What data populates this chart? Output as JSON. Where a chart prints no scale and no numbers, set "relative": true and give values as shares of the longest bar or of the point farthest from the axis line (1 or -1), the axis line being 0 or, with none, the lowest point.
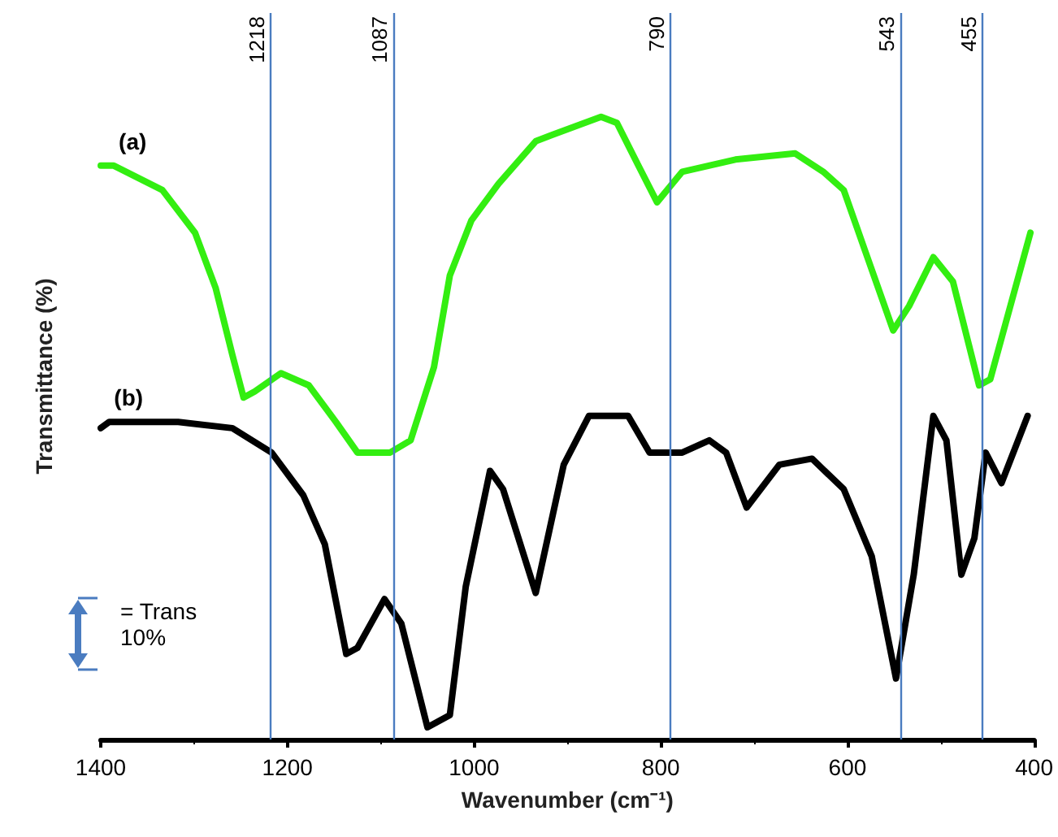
{
  "chart_data": {
    "type": "line",
    "relative": true,
    "xlabel": "Wavenumber (cm⁻¹)",
    "ylabel": "Transmittance (%)",
    "xlim": [
      1400,
      400
    ],
    "xticks": [
      1400,
      1200,
      1000,
      800,
      600,
      400
    ],
    "grid": false,
    "legend": false,
    "marker": "none",
    "line_style": "solid",
    "series": [
      {
        "name": "(a)",
        "color": "#33ee11",
        "x": [
          1400,
          1386,
          1334,
          1299,
          1277,
          1259,
          1247,
          1235,
          1207,
          1177,
          1148,
          1125,
          1090,
          1068,
          1043,
          1026,
          1003,
          974,
          934,
          917,
          864,
          847,
          824,
          804,
          777,
          720,
          656,
          626,
          604,
          581,
          551,
          534,
          508,
          487,
          459,
          447,
          404
        ],
        "values": [
          0.92,
          0.92,
          0.88,
          0.81,
          0.72,
          0.61,
          0.54,
          0.55,
          0.58,
          0.56,
          0.5,
          0.45,
          0.45,
          0.47,
          0.59,
          0.74,
          0.83,
          0.89,
          0.96,
          0.97,
          1.0,
          0.99,
          0.92,
          0.86,
          0.91,
          0.93,
          0.94,
          0.91,
          0.88,
          0.78,
          0.65,
          0.69,
          0.77,
          0.73,
          0.56,
          0.57,
          0.81
        ]
      },
      {
        "name": "(b)",
        "color": "#000000",
        "x": [
          1400,
          1391,
          1317,
          1259,
          1217,
          1183,
          1160,
          1137,
          1125,
          1096,
          1078,
          1050,
          1026,
          1009,
          983,
          969,
          934,
          904,
          877,
          835,
          812,
          777,
          748,
          730,
          708,
          673,
          638,
          604,
          574,
          548,
          529,
          508,
          494,
          478,
          464,
          452,
          435,
          407
        ],
        "values": [
          0.49,
          0.5,
          0.5,
          0.49,
          0.45,
          0.38,
          0.3,
          0.12,
          0.13,
          0.21,
          0.17,
          0.0,
          0.02,
          0.23,
          0.42,
          0.39,
          0.22,
          0.43,
          0.51,
          0.51,
          0.45,
          0.45,
          0.47,
          0.45,
          0.36,
          0.43,
          0.44,
          0.39,
          0.28,
          0.08,
          0.25,
          0.51,
          0.47,
          0.25,
          0.31,
          0.45,
          0.4,
          0.51
        ]
      }
    ],
    "ref_lines": [
      {
        "axis": "x",
        "value": 1218,
        "label": "1218",
        "color": "#4a7cc0"
      },
      {
        "axis": "x",
        "value": 1087,
        "label": "1087",
        "color": "#4a7cc0"
      },
      {
        "axis": "x",
        "value": 790,
        "label": "790",
        "color": "#4a7cc0"
      },
      {
        "axis": "x",
        "value": 543,
        "label": "543",
        "color": "#4a7cc0"
      },
      {
        "axis": "x",
        "value": 455,
        "label": "455",
        "color": "#4a7cc0"
      }
    ],
    "annotations": [
      "= Trans 10%"
    ]
  }
}
